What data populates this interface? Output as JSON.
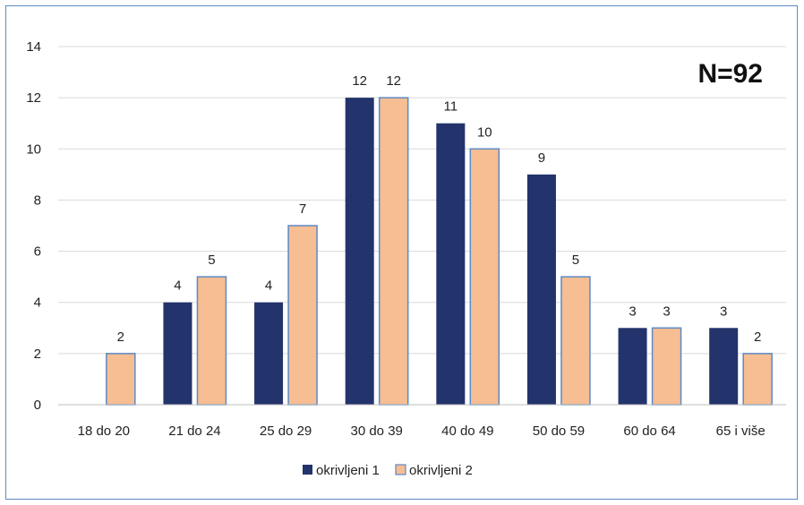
{
  "chart_data": {
    "type": "bar",
    "categories": [
      "18 do 20",
      "21 do 24",
      "25 do 29",
      "30 do 39",
      "40 do 49",
      "50 do 59",
      "60 do 64",
      "65 i više"
    ],
    "series": [
      {
        "name": "okrivljeni 1",
        "values": [
          0,
          4,
          4,
          12,
          11,
          9,
          3,
          3
        ],
        "color": "#23336b"
      },
      {
        "name": "okrivljeni 2",
        "values": [
          2,
          5,
          7,
          12,
          10,
          5,
          3,
          2
        ],
        "color": "#f7bd93"
      }
    ],
    "ylim": [
      0,
      14
    ],
    "yticks": [
      0,
      2,
      4,
      6,
      8,
      10,
      12,
      14
    ],
    "grid": true,
    "legend": "bottom-center",
    "annotation": "N=92",
    "colors": {
      "series2_border": "#5b8ac6",
      "grid": "#d9d9d9",
      "frame": "#5b8ac6"
    }
  }
}
